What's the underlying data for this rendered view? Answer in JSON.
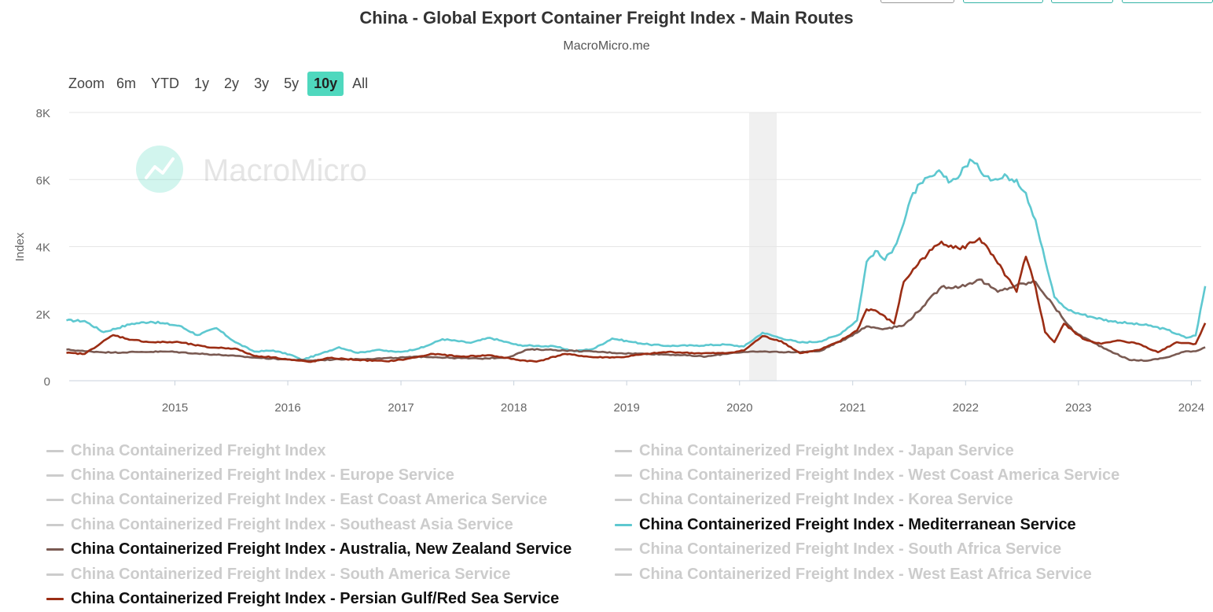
{
  "header": {
    "title": "China - Global Export Container Freight Index - Main Routes",
    "subtitle": "MacroMicro.me",
    "watermark": "MacroMicro"
  },
  "zoom": {
    "label": "Zoom",
    "options": [
      "6m",
      "YTD",
      "1y",
      "2y",
      "3y",
      "5y",
      "10y",
      "All"
    ],
    "selected": "10y"
  },
  "colors": {
    "mediterranean": "#5ec8d0",
    "australia": "#7a5a52",
    "persian_gulf": "#9b2d14",
    "inactive": "#cccccc",
    "active_zoom": "#4fd8be"
  },
  "chart_data": {
    "type": "line",
    "title": "China - Global Export Container Freight Index - Main Routes",
    "xlabel": "",
    "ylabel": "Index",
    "xlim": [
      "2014-01-24",
      "2024-02-02"
    ],
    "ylim": [
      0,
      8000
    ],
    "y_ticks": [
      "0",
      "2K",
      "4K",
      "6K",
      "8K"
    ],
    "y_tick_values": [
      0,
      2000,
      4000,
      6000,
      8000
    ],
    "x_ticks": [
      "2015",
      "2016",
      "2017",
      "2018",
      "2019",
      "2020",
      "2021",
      "2022",
      "2023",
      "2024"
    ],
    "grid": true,
    "shaded_period": [
      "2020-02",
      "2020-04"
    ],
    "legend_position": "bottom",
    "series": [
      {
        "name": "China Containerized Freight Index - Mediterranean Service",
        "color": "#5ec8d0",
        "points": [
          [
            "2014-01",
            1800
          ],
          [
            "2014-03",
            1780
          ],
          [
            "2014-05",
            1450
          ],
          [
            "2014-08",
            1700
          ],
          [
            "2014-10",
            1760
          ],
          [
            "2015-01",
            1640
          ],
          [
            "2015-03",
            1360
          ],
          [
            "2015-05",
            1570
          ],
          [
            "2015-07",
            1150
          ],
          [
            "2015-09",
            870
          ],
          [
            "2015-11",
            900
          ],
          [
            "2016-01",
            760
          ],
          [
            "2016-02",
            620
          ],
          [
            "2016-04",
            800
          ],
          [
            "2016-06",
            1000
          ],
          [
            "2016-08",
            830
          ],
          [
            "2016-10",
            920
          ],
          [
            "2016-12",
            860
          ],
          [
            "2017-01",
            880
          ],
          [
            "2017-03",
            1000
          ],
          [
            "2017-05",
            1240
          ],
          [
            "2017-08",
            1130
          ],
          [
            "2017-10",
            1280
          ],
          [
            "2018-01",
            1060
          ],
          [
            "2018-03",
            1040
          ],
          [
            "2018-05",
            1020
          ],
          [
            "2018-07",
            880
          ],
          [
            "2018-09",
            950
          ],
          [
            "2018-11",
            1260
          ],
          [
            "2019-01",
            1160
          ],
          [
            "2019-03",
            1080
          ],
          [
            "2019-05",
            1040
          ],
          [
            "2019-08",
            1050
          ],
          [
            "2019-11",
            1080
          ],
          [
            "2020-01",
            1020
          ],
          [
            "2020-03",
            1430
          ],
          [
            "2020-05",
            1270
          ],
          [
            "2020-07",
            1140
          ],
          [
            "2020-09",
            1170
          ],
          [
            "2020-11",
            1360
          ],
          [
            "2021-01",
            1800
          ],
          [
            "2021-02",
            3550
          ],
          [
            "2021-03",
            3870
          ],
          [
            "2021-04",
            3600
          ],
          [
            "2021-05",
            3980
          ],
          [
            "2021-06",
            4700
          ],
          [
            "2021-07",
            5600
          ],
          [
            "2021-08",
            5900
          ],
          [
            "2021-09",
            6100
          ],
          [
            "2021-10",
            6200
          ],
          [
            "2021-11",
            5950
          ],
          [
            "2021-12",
            6150
          ],
          [
            "2022-01",
            6600
          ],
          [
            "2022-02",
            6300
          ],
          [
            "2022-03",
            6100
          ],
          [
            "2022-04",
            6000
          ],
          [
            "2022-05",
            6100
          ],
          [
            "2022-06",
            6000
          ],
          [
            "2022-07",
            5600
          ],
          [
            "2022-08",
            4800
          ],
          [
            "2022-09",
            3600
          ],
          [
            "2022-10",
            2500
          ],
          [
            "2022-11",
            2200
          ],
          [
            "2022-12",
            2050
          ],
          [
            "2023-02",
            1900
          ],
          [
            "2023-04",
            1780
          ],
          [
            "2023-06",
            1710
          ],
          [
            "2023-08",
            1650
          ],
          [
            "2023-10",
            1520
          ],
          [
            "2023-12",
            1280
          ],
          [
            "2024-01",
            1350
          ],
          [
            "2024-02",
            2820
          ]
        ]
      },
      {
        "name": "China Containerized Freight Index - Australia, New Zealand Service",
        "color": "#7a5a52",
        "points": [
          [
            "2014-01",
            930
          ],
          [
            "2014-03",
            880
          ],
          [
            "2014-06",
            840
          ],
          [
            "2014-09",
            860
          ],
          [
            "2014-12",
            870
          ],
          [
            "2015-03",
            810
          ],
          [
            "2015-06",
            760
          ],
          [
            "2015-09",
            690
          ],
          [
            "2015-12",
            640
          ],
          [
            "2016-03",
            600
          ],
          [
            "2016-06",
            640
          ],
          [
            "2016-09",
            650
          ],
          [
            "2016-12",
            680
          ],
          [
            "2017-03",
            720
          ],
          [
            "2017-06",
            680
          ],
          [
            "2017-09",
            660
          ],
          [
            "2017-12",
            700
          ],
          [
            "2018-02",
            930
          ],
          [
            "2018-04",
            930
          ],
          [
            "2018-06",
            900
          ],
          [
            "2018-09",
            870
          ],
          [
            "2018-12",
            820
          ],
          [
            "2019-03",
            800
          ],
          [
            "2019-06",
            770
          ],
          [
            "2019-09",
            720
          ],
          [
            "2019-12",
            840
          ],
          [
            "2020-03",
            870
          ],
          [
            "2020-06",
            850
          ],
          [
            "2020-09",
            880
          ],
          [
            "2020-12",
            1280
          ],
          [
            "2021-02",
            1620
          ],
          [
            "2021-04",
            1550
          ],
          [
            "2021-06",
            1650
          ],
          [
            "2021-08",
            2200
          ],
          [
            "2021-10",
            2800
          ],
          [
            "2021-12",
            2800
          ],
          [
            "2022-02",
            3020
          ],
          [
            "2022-04",
            2650
          ],
          [
            "2022-06",
            2850
          ],
          [
            "2022-08",
            2950
          ],
          [
            "2022-10",
            2200
          ],
          [
            "2022-12",
            1480
          ],
          [
            "2023-02",
            1150
          ],
          [
            "2023-04",
            880
          ],
          [
            "2023-06",
            620
          ],
          [
            "2023-08",
            600
          ],
          [
            "2023-10",
            700
          ],
          [
            "2023-12",
            880
          ],
          [
            "2024-01",
            880
          ],
          [
            "2024-02",
            1000
          ]
        ]
      },
      {
        "name": "China Containerized Freight Index - Persian Gulf/Red Sea Service",
        "color": "#9b2d14",
        "points": [
          [
            "2014-01",
            830
          ],
          [
            "2014-03",
            800
          ],
          [
            "2014-06",
            1360
          ],
          [
            "2014-08",
            1220
          ],
          [
            "2014-10",
            1150
          ],
          [
            "2015-01",
            1150
          ],
          [
            "2015-04",
            1000
          ],
          [
            "2015-07",
            960
          ],
          [
            "2015-09",
            740
          ],
          [
            "2015-11",
            700
          ],
          [
            "2016-01",
            620
          ],
          [
            "2016-03",
            560
          ],
          [
            "2016-05",
            680
          ],
          [
            "2016-08",
            620
          ],
          [
            "2016-11",
            580
          ],
          [
            "2017-01",
            640
          ],
          [
            "2017-04",
            800
          ],
          [
            "2017-07",
            720
          ],
          [
            "2017-10",
            760
          ],
          [
            "2018-01",
            620
          ],
          [
            "2018-03",
            570
          ],
          [
            "2018-06",
            800
          ],
          [
            "2018-09",
            700
          ],
          [
            "2018-12",
            700
          ],
          [
            "2019-02",
            780
          ],
          [
            "2019-05",
            860
          ],
          [
            "2019-08",
            820
          ],
          [
            "2019-11",
            820
          ],
          [
            "2020-01",
            900
          ],
          [
            "2020-03",
            1330
          ],
          [
            "2020-05",
            1180
          ],
          [
            "2020-07",
            820
          ],
          [
            "2020-09",
            920
          ],
          [
            "2020-11",
            1150
          ],
          [
            "2021-01",
            1500
          ],
          [
            "2021-02",
            2130
          ],
          [
            "2021-03",
            2100
          ],
          [
            "2021-05",
            1700
          ],
          [
            "2021-06",
            2950
          ],
          [
            "2021-08",
            3650
          ],
          [
            "2021-10",
            4150
          ],
          [
            "2021-12",
            3920
          ],
          [
            "2022-02",
            4250
          ],
          [
            "2022-04",
            3500
          ],
          [
            "2022-06",
            2650
          ],
          [
            "2022-07",
            3700
          ],
          [
            "2022-08",
            2800
          ],
          [
            "2022-09",
            1450
          ],
          [
            "2022-10",
            1150
          ],
          [
            "2022-11",
            1700
          ],
          [
            "2023-01",
            1250
          ],
          [
            "2023-03",
            1100
          ],
          [
            "2023-05",
            1200
          ],
          [
            "2023-07",
            1100
          ],
          [
            "2023-09",
            850
          ],
          [
            "2023-11",
            1150
          ],
          [
            "2024-01",
            1100
          ],
          [
            "2024-02",
            1720
          ]
        ]
      }
    ]
  },
  "legend": {
    "items": [
      {
        "label": "China Containerized Freight Index",
        "active": false
      },
      {
        "label": "China Containerized Freight Index - Japan Service",
        "active": false
      },
      {
        "label": "China Containerized Freight Index - Europe Service",
        "active": false
      },
      {
        "label": "China Containerized Freight Index - West Coast America Service",
        "active": false
      },
      {
        "label": "China Containerized Freight Index - East Coast America Service",
        "active": false
      },
      {
        "label": "China Containerized Freight Index - Korea Service",
        "active": false
      },
      {
        "label": "China Containerized Freight Index - Southeast Asia Service",
        "active": false
      },
      {
        "label": "China Containerized Freight Index - Mediterranean Service",
        "active": true
      },
      {
        "label": "China Containerized Freight Index - Australia, New Zealand Service",
        "active": true
      },
      {
        "label": "China Containerized Freight Index - South Africa Service",
        "active": false
      },
      {
        "label": "China Containerized Freight Index - South America Service",
        "active": false
      },
      {
        "label": "China Containerized Freight Index - West East Africa Service",
        "active": false
      },
      {
        "label": "China Containerized Freight Index - Persian Gulf/Red Sea Service",
        "active": true
      }
    ]
  }
}
